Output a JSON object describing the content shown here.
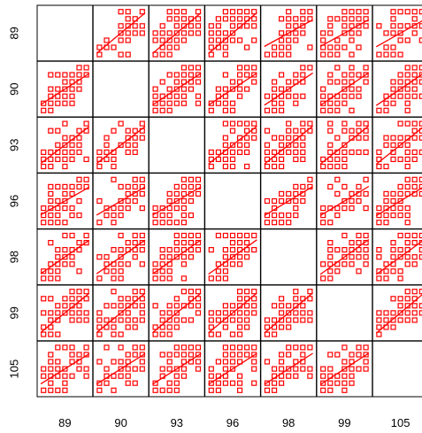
{
  "chart_data": {
    "type": "scatter",
    "subtype": "scatterplot-matrix",
    "variables": [
      "89",
      "90",
      "93",
      "96",
      "98",
      "99",
      "105"
    ],
    "diagonal": "empty",
    "marker": "open-square",
    "fit_line": "linear",
    "series_color": "#ff0000",
    "values_per_axis": [
      1,
      2,
      3,
      4,
      5,
      6,
      7
    ],
    "axis_range": [
      0.6,
      7.4
    ],
    "grid": false,
    "note": ""
  }
}
